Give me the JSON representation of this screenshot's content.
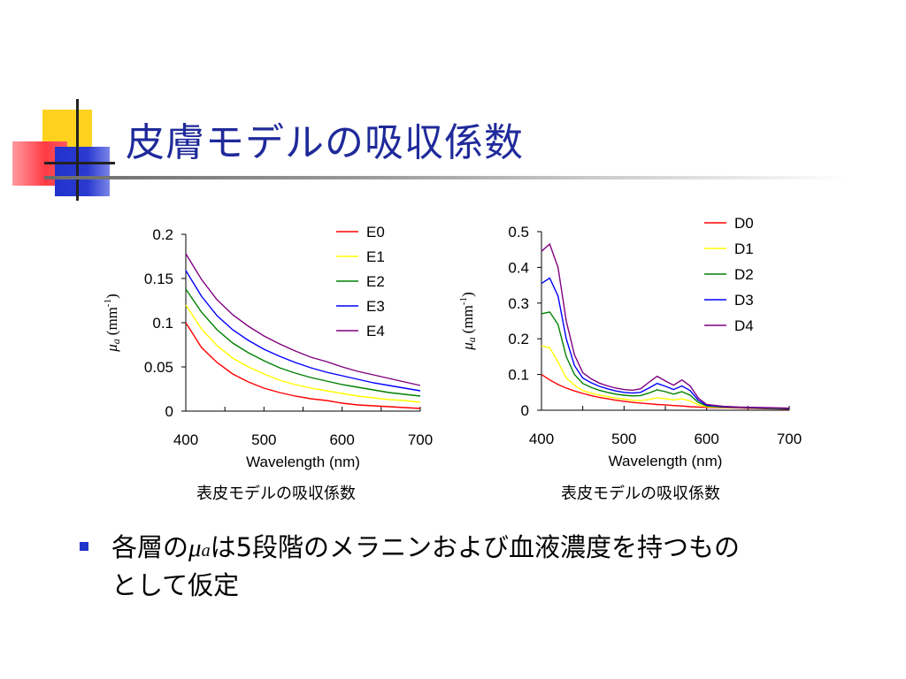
{
  "slide": {
    "title": "皮膚モデルの吸収係数",
    "bullet": {
      "part1": "各層の",
      "mu": "μ",
      "sub": "a",
      "part2": "は5段階のメラニンおよび血液濃度を持つもの",
      "line2": "として仮定"
    }
  },
  "colors": {
    "title": "#1f2a9a",
    "bullet": "#2233cc"
  },
  "chart_data": [
    {
      "type": "line",
      "caption": "表皮モデルの吸収係数",
      "xlabel": "Wavelength (nm)",
      "ylabel": {
        "mu": "μ",
        "sub": "a",
        "unit": "(mm",
        "sup": "-1",
        "close": ")"
      },
      "xlim": [
        400,
        700
      ],
      "ylim": [
        0,
        0.2
      ],
      "xticks": [
        400,
        500,
        600,
        700
      ],
      "xtick_labels": [
        "400",
        "500",
        "600",
        "700"
      ],
      "yticks": [
        0,
        0.05,
        0.1,
        0.15,
        0.2
      ],
      "ytick_labels": [
        "0",
        "0.05",
        "0.1",
        "0.15",
        "0.2"
      ],
      "legend_position": "top-right",
      "x": [
        400,
        420,
        440,
        460,
        480,
        500,
        520,
        540,
        560,
        580,
        600,
        620,
        640,
        660,
        680,
        700
      ],
      "series": [
        {
          "name": "E0",
          "color": "#ff0000",
          "values": [
            0.1,
            0.072,
            0.055,
            0.042,
            0.033,
            0.026,
            0.021,
            0.017,
            0.014,
            0.012,
            0.009,
            0.007,
            0.006,
            0.005,
            0.004,
            0.003
          ]
        },
        {
          "name": "E1",
          "color": "#ffff00",
          "values": [
            0.12,
            0.093,
            0.074,
            0.06,
            0.05,
            0.042,
            0.035,
            0.03,
            0.026,
            0.023,
            0.02,
            0.017,
            0.015,
            0.013,
            0.012,
            0.01
          ]
        },
        {
          "name": "E2",
          "color": "#008000",
          "values": [
            0.138,
            0.112,
            0.092,
            0.077,
            0.066,
            0.057,
            0.049,
            0.043,
            0.038,
            0.034,
            0.03,
            0.027,
            0.024,
            0.021,
            0.019,
            0.017
          ]
        },
        {
          "name": "E3",
          "color": "#0000ff",
          "values": [
            0.159,
            0.13,
            0.108,
            0.092,
            0.08,
            0.07,
            0.062,
            0.055,
            0.049,
            0.044,
            0.04,
            0.036,
            0.032,
            0.029,
            0.026,
            0.023
          ]
        },
        {
          "name": "E4",
          "color": "#800080",
          "values": [
            0.178,
            0.149,
            0.126,
            0.109,
            0.096,
            0.085,
            0.076,
            0.068,
            0.061,
            0.056,
            0.05,
            0.045,
            0.041,
            0.037,
            0.033,
            0.029
          ]
        }
      ]
    },
    {
      "type": "line",
      "caption": "表皮モデルの吸収係数",
      "xlabel": "Wavelength (nm)",
      "ylabel": {
        "mu": "μ",
        "sub": "a",
        "unit": "(mm",
        "sup": "-1",
        "close": ")"
      },
      "xlim": [
        400,
        700
      ],
      "ylim": [
        0,
        0.5
      ],
      "xticks": [
        400,
        500,
        600,
        700
      ],
      "xtick_labels": [
        "400",
        "500",
        "600",
        "700"
      ],
      "yticks": [
        0,
        0.1,
        0.2,
        0.3,
        0.4,
        0.5
      ],
      "ytick_labels": [
        "0",
        "0.1",
        "0.2",
        "0.3",
        "0.4",
        "0.5"
      ],
      "legend_position": "top-right",
      "x": [
        400,
        410,
        420,
        430,
        440,
        450,
        460,
        470,
        480,
        490,
        500,
        510,
        520,
        530,
        540,
        550,
        560,
        570,
        580,
        590,
        600,
        620,
        640,
        660,
        680,
        700
      ],
      "series": [
        {
          "name": "D0",
          "color": "#ff0000",
          "values": [
            0.1,
            0.085,
            0.072,
            0.062,
            0.054,
            0.047,
            0.041,
            0.036,
            0.032,
            0.028,
            0.025,
            0.022,
            0.02,
            0.018,
            0.016,
            0.015,
            0.013,
            0.012,
            0.01,
            0.009,
            0.008,
            0.007,
            0.006,
            0.005,
            0.004,
            0.003
          ]
        },
        {
          "name": "D1",
          "color": "#ffff00",
          "values": [
            0.18,
            0.175,
            0.135,
            0.09,
            0.07,
            0.055,
            0.048,
            0.042,
            0.038,
            0.034,
            0.031,
            0.028,
            0.027,
            0.03,
            0.035,
            0.032,
            0.029,
            0.032,
            0.026,
            0.015,
            0.01,
            0.008,
            0.007,
            0.006,
            0.005,
            0.004
          ]
        },
        {
          "name": "D2",
          "color": "#008000",
          "values": [
            0.27,
            0.275,
            0.24,
            0.15,
            0.1,
            0.075,
            0.064,
            0.056,
            0.05,
            0.045,
            0.042,
            0.04,
            0.041,
            0.048,
            0.057,
            0.052,
            0.045,
            0.052,
            0.042,
            0.022,
            0.012,
            0.009,
            0.008,
            0.006,
            0.005,
            0.004
          ]
        },
        {
          "name": "D3",
          "color": "#0000ff",
          "values": [
            0.355,
            0.37,
            0.32,
            0.2,
            0.125,
            0.09,
            0.077,
            0.067,
            0.06,
            0.054,
            0.05,
            0.048,
            0.05,
            0.062,
            0.075,
            0.067,
            0.058,
            0.068,
            0.055,
            0.028,
            0.014,
            0.01,
            0.008,
            0.007,
            0.006,
            0.005
          ]
        },
        {
          "name": "D4",
          "color": "#800080",
          "values": [
            0.445,
            0.465,
            0.4,
            0.25,
            0.155,
            0.105,
            0.088,
            0.076,
            0.068,
            0.062,
            0.058,
            0.056,
            0.06,
            0.078,
            0.095,
            0.082,
            0.07,
            0.085,
            0.068,
            0.034,
            0.016,
            0.011,
            0.009,
            0.008,
            0.007,
            0.006
          ]
        }
      ]
    }
  ]
}
